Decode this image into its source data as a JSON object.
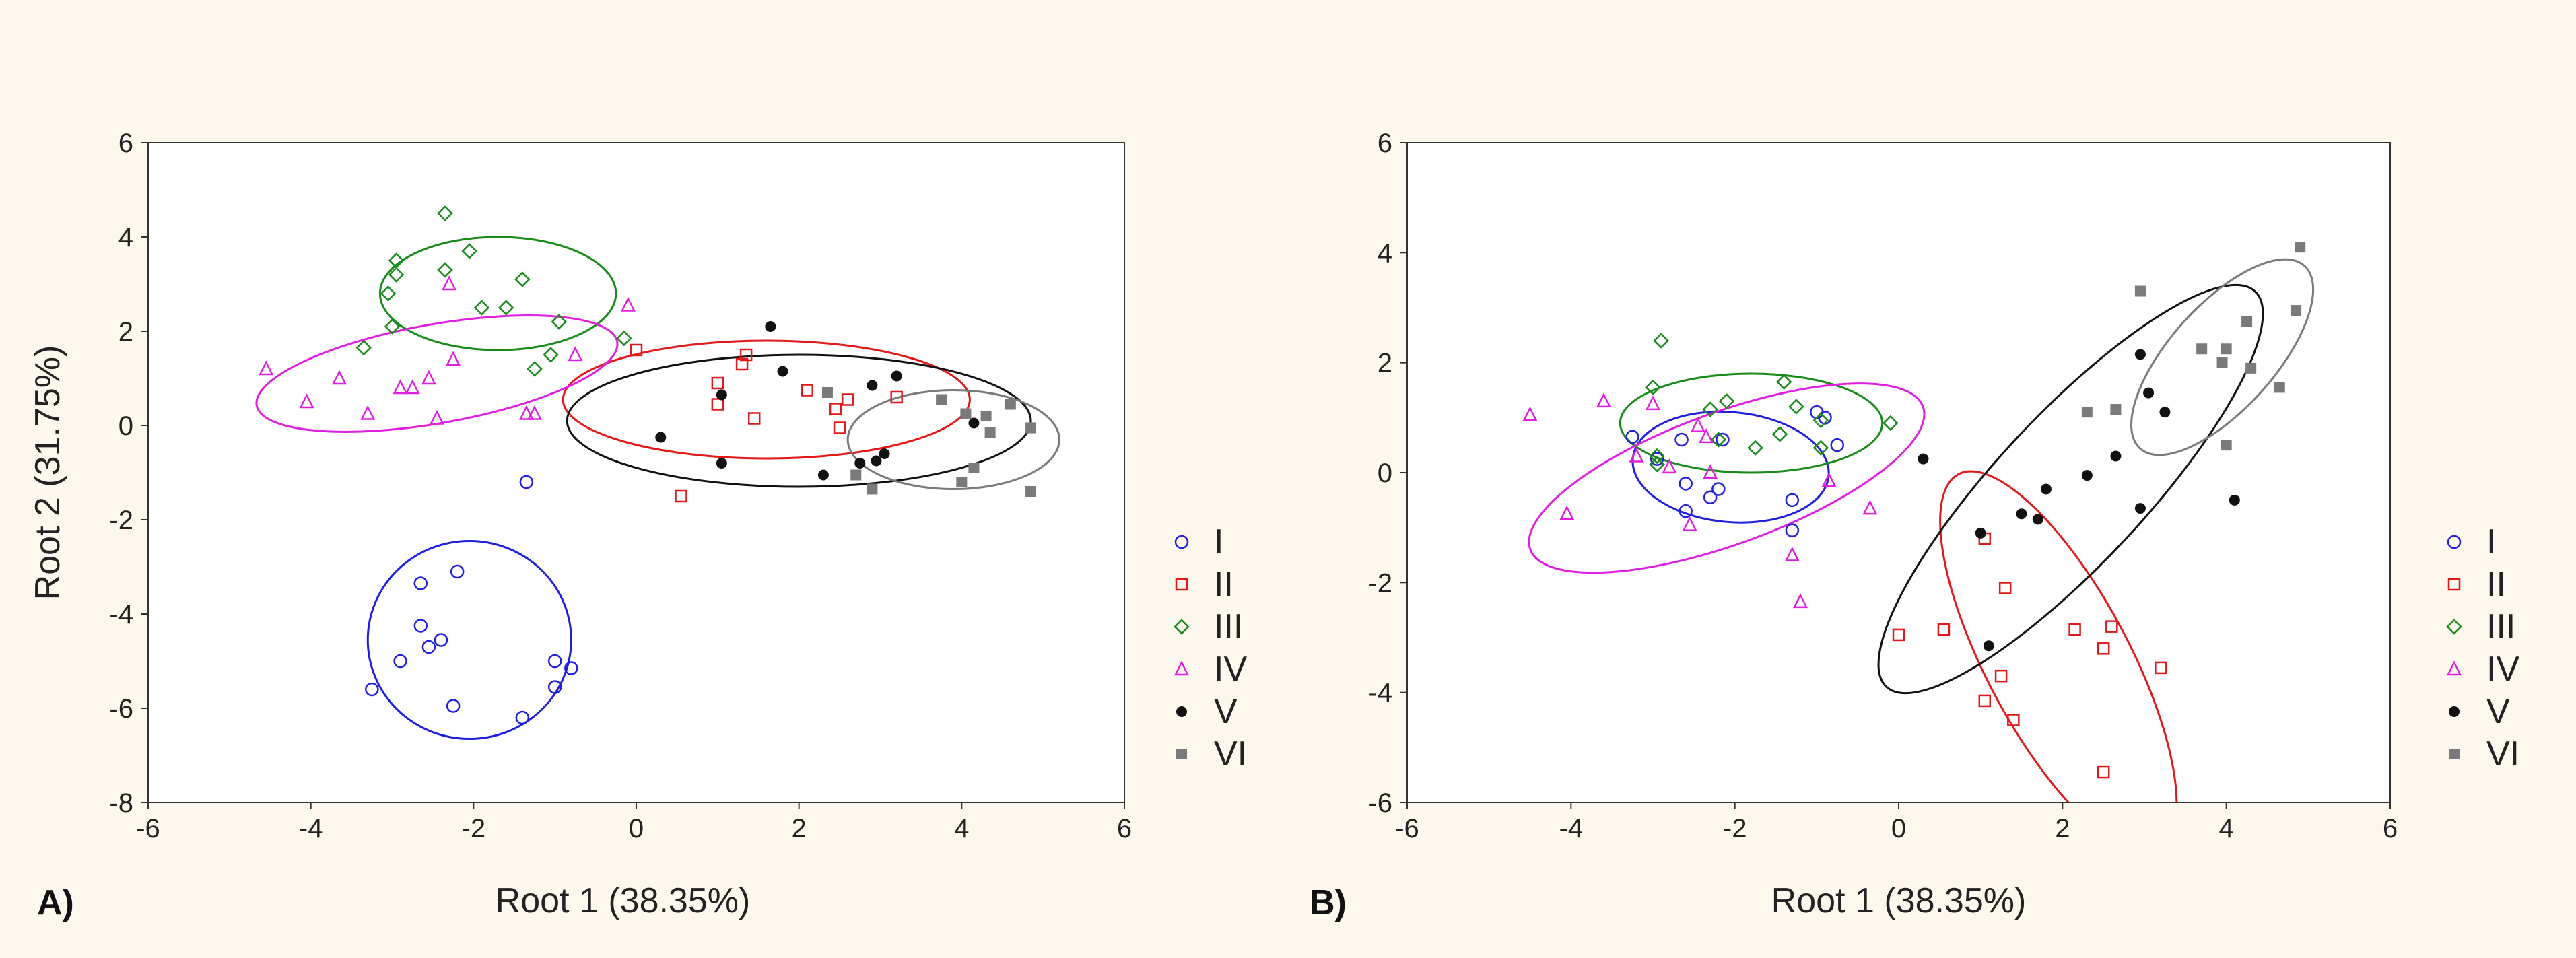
{
  "chart_data": [
    {
      "type": "scatter",
      "panel_label": "A)",
      "xlabel": "Root 1 (38.35%)",
      "ylabel": "Root 2 (31.75%)",
      "xlim": [
        -6,
        6
      ],
      "ylim": [
        -8,
        6
      ],
      "x_ticks": [
        "-6",
        "-4",
        "-2",
        "0",
        "2",
        "4",
        "6"
      ],
      "y_ticks": [
        "6",
        "4",
        "2",
        "0",
        "-2",
        "-4",
        "-6",
        "-8"
      ],
      "grid": false,
      "legend_position": "right",
      "series": [
        {
          "name": "I",
          "marker": "circle",
          "color": "#1f1fdd",
          "ellipse": {
            "cx": -2.05,
            "cy": -4.55,
            "rx": 1.25,
            "ry": 2.1,
            "angle": 0
          },
          "points": [
            [
              -2.2,
              -3.1
            ],
            [
              -2.65,
              -3.35
            ],
            [
              -1.35,
              -1.2
            ],
            [
              -2.65,
              -4.25
            ],
            [
              -2.4,
              -4.55
            ],
            [
              -2.55,
              -4.7
            ],
            [
              -2.9,
              -5.0
            ],
            [
              -3.25,
              -5.6
            ],
            [
              -2.25,
              -5.95
            ],
            [
              -1.4,
              -6.2
            ],
            [
              -1.0,
              -5.0
            ],
            [
              -0.8,
              -5.15
            ],
            [
              -1.0,
              -5.55
            ]
          ]
        },
        {
          "name": "II",
          "marker": "square",
          "color": "#e01a1a",
          "ellipse": {
            "cx": 1.6,
            "cy": 0.55,
            "rx": 2.5,
            "ry": 1.25,
            "angle": 0
          },
          "points": [
            [
              0,
              1.6
            ],
            [
              0.55,
              -1.5
            ],
            [
              1.0,
              0.9
            ],
            [
              1.0,
              0.45
            ],
            [
              1.3,
              1.3
            ],
            [
              1.35,
              1.5
            ],
            [
              1.45,
              0.15
            ],
            [
              2.1,
              0.75
            ],
            [
              2.45,
              0.35
            ],
            [
              2.5,
              -0.05
            ],
            [
              2.6,
              0.55
            ],
            [
              3.2,
              0.6
            ]
          ]
        },
        {
          "name": "III",
          "marker": "diamond",
          "color": "#1a8a1a",
          "ellipse": {
            "cx": -1.7,
            "cy": 2.8,
            "rx": 1.45,
            "ry": 1.2,
            "angle": 0
          },
          "points": [
            [
              -2.35,
              4.5
            ],
            [
              -2.05,
              3.7
            ],
            [
              -2.35,
              3.3
            ],
            [
              -2.95,
              3.5
            ],
            [
              -2.95,
              3.2
            ],
            [
              -3.05,
              2.8
            ],
            [
              -1.4,
              3.1
            ],
            [
              -3.0,
              2.1
            ],
            [
              -1.9,
              2.5
            ],
            [
              -1.6,
              2.5
            ],
            [
              -0.95,
              2.2
            ],
            [
              -3.35,
              1.65
            ],
            [
              -1.05,
              1.5
            ],
            [
              -1.25,
              1.2
            ],
            [
              -0.15,
              1.85
            ]
          ]
        },
        {
          "name": "IV",
          "marker": "triangle",
          "color": "#e020e0",
          "ellipse": {
            "cx": -2.45,
            "cy": 1.1,
            "rx": 2.25,
            "ry": 1.05,
            "angle": 10
          },
          "points": [
            [
              -4.55,
              1.2
            ],
            [
              -4.05,
              0.5
            ],
            [
              -3.65,
              1.0
            ],
            [
              -3.3,
              0.25
            ],
            [
              -2.9,
              0.8
            ],
            [
              -2.75,
              0.8
            ],
            [
              -2.55,
              1.0
            ],
            [
              -2.45,
              0.15
            ],
            [
              -2.3,
              3.0
            ],
            [
              -2.25,
              1.4
            ],
            [
              -1.35,
              0.25
            ],
            [
              -1.25,
              0.25
            ],
            [
              -0.75,
              1.5
            ],
            [
              -0.1,
              2.55
            ]
          ]
        },
        {
          "name": "V",
          "marker": "dot",
          "color": "#111111",
          "ellipse": {
            "cx": 2.0,
            "cy": 0.1,
            "rx": 2.85,
            "ry": 1.4,
            "angle": 0
          },
          "points": [
            [
              0.3,
              -0.25
            ],
            [
              1.05,
              0.65
            ],
            [
              1.05,
              -0.8
            ],
            [
              1.65,
              2.1
            ],
            [
              1.8,
              1.15
            ],
            [
              2.3,
              -1.05
            ],
            [
              2.75,
              -0.8
            ],
            [
              2.9,
              0.85
            ],
            [
              2.95,
              -0.75
            ],
            [
              3.05,
              -0.6
            ],
            [
              3.2,
              1.05
            ],
            [
              4.15,
              0.05
            ]
          ]
        },
        {
          "name": "VI",
          "marker": "filled-square",
          "color": "#7a7a7a",
          "ellipse": {
            "cx": 3.9,
            "cy": -0.3,
            "rx": 1.3,
            "ry": 1.05,
            "angle": 0
          },
          "points": [
            [
              2.35,
              0.7
            ],
            [
              2.7,
              -1.05
            ],
            [
              2.9,
              -1.35
            ],
            [
              3.75,
              0.55
            ],
            [
              4.0,
              -1.2
            ],
            [
              4.05,
              0.25
            ],
            [
              4.15,
              -0.9
            ],
            [
              4.3,
              0.2
            ],
            [
              4.35,
              -0.15
            ],
            [
              4.6,
              0.45
            ],
            [
              4.85,
              -0.05
            ],
            [
              4.85,
              -1.4
            ]
          ]
        }
      ]
    },
    {
      "type": "scatter",
      "panel_label": "B)",
      "xlabel": "Root 1 (38.35%)",
      "ylabel": "",
      "xlim": [
        -6,
        6
      ],
      "ylim": [
        -6,
        6
      ],
      "x_ticks": [
        "-6",
        "-4",
        "-2",
        "0",
        "2",
        "4",
        "6"
      ],
      "y_ticks": [
        "6",
        "4",
        "2",
        "0",
        "-2",
        "-4",
        "-6"
      ],
      "grid": false,
      "legend_position": "right",
      "series": [
        {
          "name": "I",
          "marker": "circle",
          "color": "#1f1fdd",
          "ellipse": {
            "cx": -2.05,
            "cy": 0.1,
            "rx": 1.2,
            "ry": 1.0,
            "angle": -5
          },
          "points": [
            [
              -3.25,
              0.65
            ],
            [
              -2.95,
              0.25
            ],
            [
              -2.65,
              0.6
            ],
            [
              -2.6,
              -0.2
            ],
            [
              -2.3,
              -0.45
            ],
            [
              -2.2,
              -0.3
            ],
            [
              -2.15,
              0.6
            ],
            [
              -2.6,
              -0.7
            ],
            [
              -1.3,
              -0.5
            ],
            [
              -1.3,
              -1.05
            ],
            [
              -1.0,
              1.1
            ],
            [
              -0.75,
              0.5
            ],
            [
              -0.9,
              1.0
            ]
          ]
        },
        {
          "name": "II",
          "marker": "square",
          "color": "#e01a1a",
          "ellipse": {
            "cx": 1.95,
            "cy": -3.45,
            "rx": 2.6,
            "ry": 1.3,
            "angle": -62
          },
          "points": [
            [
              0,
              -2.95
            ],
            [
              0.55,
              -2.85
            ],
            [
              1.05,
              -1.2
            ],
            [
              1.05,
              -4.15
            ],
            [
              1.25,
              -3.7
            ],
            [
              1.3,
              -2.1
            ],
            [
              1.4,
              -4.5
            ],
            [
              2.15,
              -2.85
            ],
            [
              2.5,
              -3.2
            ],
            [
              2.6,
              -2.8
            ],
            [
              2.5,
              -5.45
            ],
            [
              3.2,
              -3.55
            ]
          ]
        },
        {
          "name": "III",
          "marker": "diamond",
          "color": "#1a8a1a",
          "ellipse": {
            "cx": -1.8,
            "cy": 0.9,
            "rx": 1.6,
            "ry": 0.9,
            "angle": 0
          },
          "points": [
            [
              -2.9,
              2.4
            ],
            [
              -3.0,
              1.55
            ],
            [
              -2.95,
              0.3
            ],
            [
              -2.3,
              1.15
            ],
            [
              -2.2,
              0.6
            ],
            [
              -2.1,
              1.3
            ],
            [
              -1.45,
              0.7
            ],
            [
              -1.75,
              0.45
            ],
            [
              -1.4,
              1.65
            ],
            [
              -1.25,
              1.2
            ],
            [
              -0.95,
              0.95
            ],
            [
              -0.95,
              0.45
            ],
            [
              -0.1,
              0.9
            ],
            [
              -2.95,
              0.15
            ]
          ]
        },
        {
          "name": "IV",
          "marker": "triangle",
          "color": "#e020e0",
          "ellipse": {
            "cx": -2.1,
            "cy": -0.1,
            "rx": 2.55,
            "ry": 1.2,
            "angle": 20
          },
          "points": [
            [
              -4.5,
              1.05
            ],
            [
              -4.05,
              -0.75
            ],
            [
              -3.6,
              1.3
            ],
            [
              -3.2,
              0.3
            ],
            [
              -3.0,
              1.25
            ],
            [
              -2.8,
              0.1
            ],
            [
              -2.45,
              0.85
            ],
            [
              -2.35,
              0.65
            ],
            [
              -2.3,
              0.0
            ],
            [
              -2.55,
              -0.95
            ],
            [
              -1.3,
              -1.5
            ],
            [
              -1.2,
              -2.35
            ],
            [
              -0.85,
              -0.15
            ],
            [
              -0.35,
              -0.65
            ]
          ]
        },
        {
          "name": "V",
          "marker": "dot",
          "color": "#111111",
          "ellipse": {
            "cx": 2.1,
            "cy": -0.3,
            "rx": 3.3,
            "ry": 1.35,
            "angle": 47
          },
          "points": [
            [
              0.3,
              0.25
            ],
            [
              1.0,
              -1.1
            ],
            [
              1.1,
              -3.15
            ],
            [
              1.5,
              -0.75
            ],
            [
              1.7,
              -0.85
            ],
            [
              1.8,
              -0.3
            ],
            [
              2.3,
              -0.05
            ],
            [
              2.65,
              0.3
            ],
            [
              2.95,
              -0.65
            ],
            [
              2.95,
              2.15
            ],
            [
              3.05,
              1.45
            ],
            [
              3.25,
              1.1
            ],
            [
              4.1,
              -0.5
            ]
          ]
        },
        {
          "name": "VI",
          "marker": "filled-square",
          "color": "#7a7a7a",
          "ellipse": {
            "cx": 3.95,
            "cy": 2.1,
            "rx": 1.5,
            "ry": 0.95,
            "angle": 48
          },
          "points": [
            [
              2.3,
              1.1
            ],
            [
              2.65,
              1.15
            ],
            [
              2.95,
              3.3
            ],
            [
              3.7,
              2.25
            ],
            [
              3.95,
              2.0
            ],
            [
              4.0,
              2.25
            ],
            [
              4.0,
              0.5
            ],
            [
              4.25,
              2.75
            ],
            [
              4.3,
              1.9
            ],
            [
              4.65,
              1.55
            ],
            [
              4.85,
              2.95
            ],
            [
              4.9,
              4.1
            ]
          ]
        }
      ]
    }
  ]
}
